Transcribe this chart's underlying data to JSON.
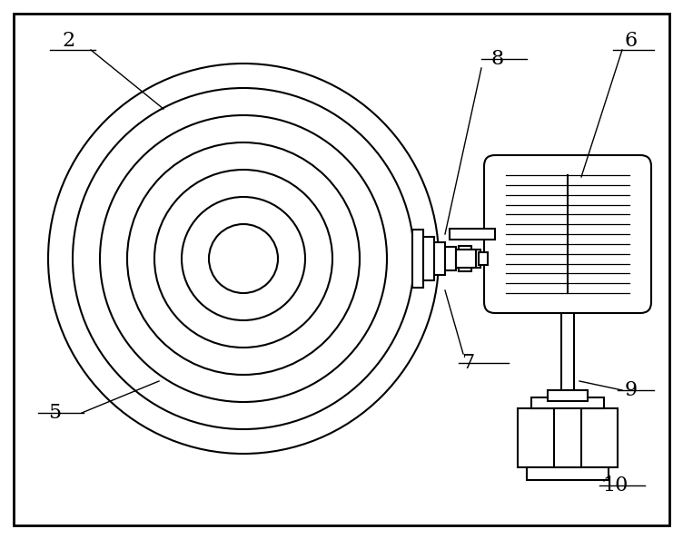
{
  "bg_color": "#ffffff",
  "line_color": "#000000",
  "fig_width": 7.52,
  "fig_height": 5.94,
  "dpi": 100,
  "label_fontsize": 16
}
